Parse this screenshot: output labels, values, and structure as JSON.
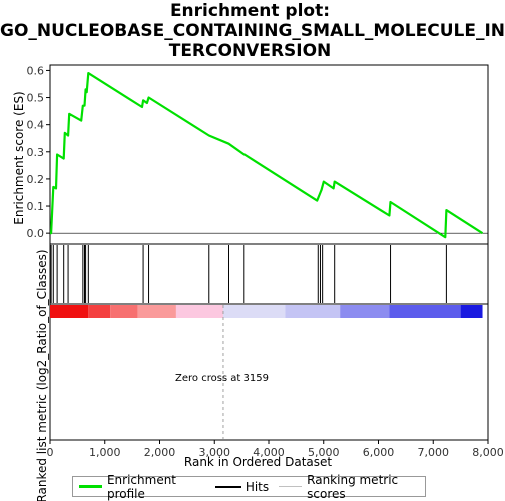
{
  "title_lines": [
    "Enrichment plot:",
    "GO_NUCLEOBASE_CONTAINING_SMALL_MOLECULE_IN",
    "TERCONVERSION"
  ],
  "colors": {
    "es_line": "#00e000",
    "hits": "#000000",
    "zero_cross_line": "#a0a0a0",
    "ranking_positive": "#ff0000",
    "ranking_negative": "#0000ff"
  },
  "legend": {
    "items": [
      {
        "label": "Enrichment profile",
        "color": "#00e000"
      },
      {
        "label": "Hits",
        "color": "#000000"
      },
      {
        "label": "Ranking metric scores",
        "color": "#c0c0c0"
      }
    ]
  },
  "chart_data": {
    "type": "line",
    "top_panel": {
      "ylabel": "Enrichment score (ES)",
      "ylim": [
        -0.04,
        0.62
      ],
      "yticks": [
        0.0,
        0.1,
        0.2,
        0.3,
        0.4,
        0.5,
        0.6
      ],
      "ytick_labels": [
        "0.0",
        "0.1",
        "0.2",
        "0.3",
        "0.4",
        "0.5",
        "0.6"
      ],
      "series": [
        {
          "x": [
            0,
            20,
            60,
            65,
            110,
            130,
            250,
            270,
            330,
            350,
            570,
            600,
            630,
            650,
            670,
            700,
            1680,
            1700,
            1770,
            1800,
            2900,
            3260,
            3540,
            3560,
            4880,
            4900,
            4940,
            4960,
            4980,
            5000,
            5180,
            5200,
            6200,
            6220,
            7220,
            7240,
            7900
          ],
          "y": [
            0.0,
            0.0,
            0.17,
            0.17,
            0.165,
            0.29,
            0.275,
            0.37,
            0.36,
            0.44,
            0.415,
            0.47,
            0.47,
            0.53,
            0.52,
            0.59,
            0.465,
            0.49,
            0.48,
            0.5,
            0.36,
            0.33,
            0.29,
            0.29,
            0.12,
            0.13,
            0.15,
            0.16,
            0.175,
            0.19,
            0.165,
            0.19,
            0.065,
            0.115,
            -0.015,
            0.085,
            0.0
          ]
        }
      ]
    },
    "hits": [
      20,
      60,
      130,
      250,
      330,
      600,
      630,
      650,
      700,
      1700,
      1800,
      2900,
      3260,
      3540,
      4900,
      4940,
      4980,
      5200,
      6220,
      7240
    ],
    "bottom_panel": {
      "ylabel": "Ranked list metric (log2_Ratio_of_Classes)",
      "xlabel": "Rank in Ordered Dataset",
      "xlim": [
        0,
        8000
      ],
      "xticks": [
        0,
        1000,
        2000,
        3000,
        4000,
        5000,
        6000,
        7000,
        8000
      ],
      "xtick_labels": [
        "0",
        "1,000",
        "2,000",
        "3,000",
        "4,000",
        "5,000",
        "6,000",
        "7,000",
        "8,000"
      ],
      "zero_cross_rank": 3159,
      "zero_cross_label": "Zero cross at 3159",
      "n_genes": 7900
    }
  }
}
